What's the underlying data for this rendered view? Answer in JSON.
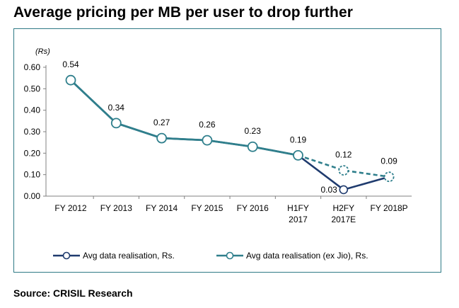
{
  "title": "Average pricing per MB per user to drop further",
  "source": "Source: CRISIL Research",
  "colors": {
    "dark": "#1f3b6e",
    "teal": "#2f7f8c",
    "frame": "#2f7a86",
    "axis": "#808080"
  },
  "chart_data": {
    "type": "line",
    "ylabel": "(Rs)",
    "ylim": [
      0,
      0.6
    ],
    "yticks": [
      "0.00",
      "0.10",
      "0.20",
      "0.30",
      "0.40",
      "0.50",
      "0.60"
    ],
    "categories": [
      [
        "FY 2012"
      ],
      [
        "FY 2013"
      ],
      [
        "FY 2014"
      ],
      [
        "FY 2015"
      ],
      [
        "FY 2016"
      ],
      [
        "H1FY",
        "2017"
      ],
      [
        "H2FY",
        "2017E"
      ],
      [
        "FY 2018P"
      ]
    ],
    "series": [
      {
        "name": "Avg data realisation, Rs.",
        "color": "#1f3b6e",
        "values": [
          0.54,
          0.34,
          0.27,
          0.26,
          0.23,
          0.19,
          0.03,
          0.09
        ],
        "labels": [
          "",
          "",
          "",
          "",
          "",
          "",
          "0.03",
          ""
        ]
      },
      {
        "name": "Avg data realisation (ex Jio), Rs.",
        "color": "#2f7f8c",
        "values": [
          0.54,
          0.34,
          0.27,
          0.26,
          0.23,
          0.19,
          0.12,
          0.09
        ],
        "dashed_from_index": 5,
        "labels": [
          "0.54",
          "0.34",
          "0.27",
          "0.26",
          "0.23",
          "0.19",
          "0.12",
          "0.09"
        ]
      }
    ],
    "legend_position": "bottom"
  }
}
